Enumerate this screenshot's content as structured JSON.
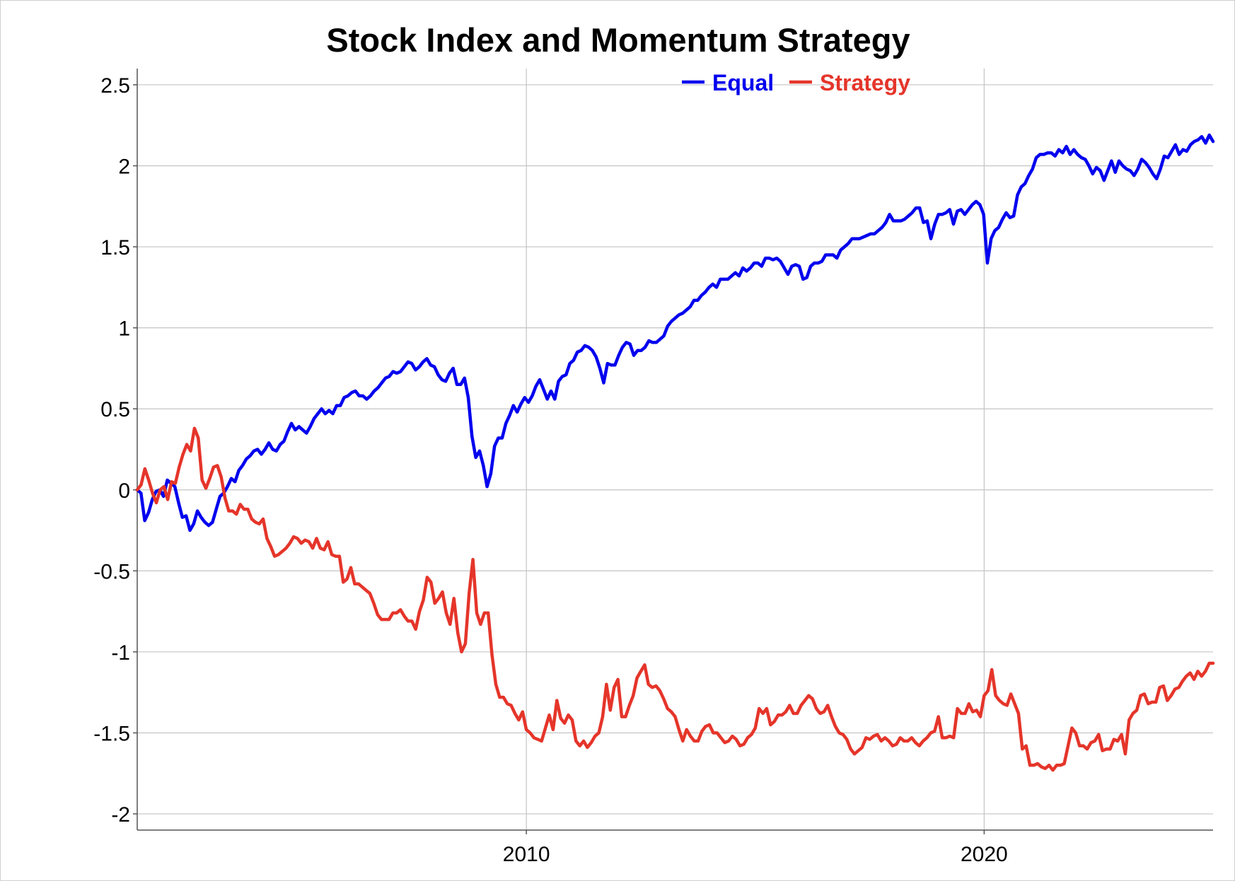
{
  "chart_data": {
    "type": "line",
    "title": "Stock Index and Momentum Strategy",
    "xlabel": "",
    "ylabel": "",
    "x_start_year": 2001.5,
    "x_end_year": 2025,
    "xlim": [
      2001.5,
      2025
    ],
    "ylim": [
      -2.1,
      2.6
    ],
    "yticks": [
      2.5,
      2,
      1.5,
      1,
      0.5,
      0,
      -0.5,
      -1,
      -1.5,
      -2
    ],
    "ytick_labels": [
      "2.5",
      "2",
      "1.5",
      "1",
      "0.5",
      "0",
      "-0.5",
      "-1",
      "-1.5",
      "-2"
    ],
    "xticks": [
      2010,
      2020
    ],
    "xtick_labels": [
      "2010",
      "2020"
    ],
    "grid": true,
    "legend_position": "top-right",
    "series": [
      {
        "name": "Equal",
        "color": "#0000ee",
        "values": [
          0,
          -0.02,
          -0.19,
          -0.14,
          -0.06,
          -0.01,
          0,
          -0.04,
          0.06,
          0.04,
          0.02,
          -0.08,
          -0.17,
          -0.16,
          -0.25,
          -0.21,
          -0.13,
          -0.17,
          -0.2,
          -0.22,
          -0.2,
          -0.12,
          -0.04,
          -0.02,
          0.02,
          0.07,
          0.05,
          0.12,
          0.15,
          0.19,
          0.21,
          0.24,
          0.25,
          0.22,
          0.25,
          0.29,
          0.25,
          0.24,
          0.28,
          0.3,
          0.36,
          0.41,
          0.37,
          0.39,
          0.37,
          0.35,
          0.39,
          0.44,
          0.47,
          0.5,
          0.47,
          0.49,
          0.47,
          0.52,
          0.52,
          0.57,
          0.58,
          0.6,
          0.61,
          0.58,
          0.58,
          0.56,
          0.58,
          0.61,
          0.63,
          0.66,
          0.69,
          0.7,
          0.73,
          0.72,
          0.73,
          0.76,
          0.79,
          0.78,
          0.74,
          0.76,
          0.79,
          0.81,
          0.77,
          0.76,
          0.71,
          0.68,
          0.67,
          0.72,
          0.75,
          0.65,
          0.65,
          0.69,
          0.57,
          0.33,
          0.2,
          0.24,
          0.15,
          0.02,
          0.1,
          0.27,
          0.32,
          0.32,
          0.41,
          0.46,
          0.52,
          0.48,
          0.53,
          0.57,
          0.54,
          0.58,
          0.64,
          0.68,
          0.62,
          0.56,
          0.61,
          0.56,
          0.67,
          0.7,
          0.71,
          0.78,
          0.8,
          0.85,
          0.86,
          0.89,
          0.88,
          0.86,
          0.82,
          0.75,
          0.66,
          0.78,
          0.77,
          0.77,
          0.83,
          0.88,
          0.91,
          0.9,
          0.83,
          0.86,
          0.86,
          0.88,
          0.92,
          0.91,
          0.91,
          0.93,
          0.95,
          1.01,
          1.04,
          1.06,
          1.08,
          1.09,
          1.11,
          1.13,
          1.17,
          1.17,
          1.2,
          1.22,
          1.25,
          1.27,
          1.25,
          1.3,
          1.3,
          1.3,
          1.32,
          1.34,
          1.32,
          1.37,
          1.35,
          1.37,
          1.4,
          1.4,
          1.38,
          1.43,
          1.43,
          1.42,
          1.43,
          1.41,
          1.37,
          1.33,
          1.38,
          1.39,
          1.38,
          1.3,
          1.31,
          1.38,
          1.4,
          1.4,
          1.41,
          1.45,
          1.45,
          1.45,
          1.43,
          1.48,
          1.5,
          1.52,
          1.55,
          1.55,
          1.55,
          1.56,
          1.57,
          1.58,
          1.58,
          1.6,
          1.62,
          1.65,
          1.7,
          1.66,
          1.66,
          1.66,
          1.67,
          1.69,
          1.71,
          1.74,
          1.74,
          1.65,
          1.66,
          1.55,
          1.64,
          1.7,
          1.7,
          1.71,
          1.73,
          1.64,
          1.72,
          1.73,
          1.7,
          1.73,
          1.76,
          1.78,
          1.76,
          1.7,
          1.4,
          1.55,
          1.6,
          1.62,
          1.67,
          1.71,
          1.68,
          1.69,
          1.82,
          1.87,
          1.89,
          1.94,
          1.98,
          2.05,
          2.07,
          2.07,
          2.08,
          2.08,
          2.06,
          2.1,
          2.08,
          2.12,
          2.07,
          2.1,
          2.07,
          2.05,
          2.04,
          2.0,
          1.95,
          1.99,
          1.97,
          1.91,
          1.97,
          2.03,
          1.96,
          2.03,
          2.0,
          1.98,
          1.97,
          1.94,
          1.98,
          2.04,
          2.02,
          1.99,
          1.95,
          1.92,
          1.98,
          2.06,
          2.05,
          2.09,
          2.13,
          2.07,
          2.1,
          2.09,
          2.13,
          2.15,
          2.16,
          2.18,
          2.14,
          2.19,
          2.15
        ]
      },
      {
        "name": "Strategy",
        "color": "#e5352a",
        "values": [
          0,
          0.03,
          0.13,
          0.06,
          -0.02,
          -0.08,
          0,
          0.02,
          -0.06,
          0.05,
          0.04,
          0.14,
          0.22,
          0.28,
          0.24,
          0.38,
          0.32,
          0.06,
          0.01,
          0.07,
          0.14,
          0.15,
          0.08,
          -0.05,
          -0.13,
          -0.13,
          -0.15,
          -0.09,
          -0.12,
          -0.12,
          -0.18,
          -0.2,
          -0.21,
          -0.18,
          -0.3,
          -0.35,
          -0.41,
          -0.4,
          -0.38,
          -0.36,
          -0.33,
          -0.29,
          -0.3,
          -0.33,
          -0.31,
          -0.32,
          -0.36,
          -0.3,
          -0.36,
          -0.37,
          -0.32,
          -0.4,
          -0.41,
          -0.41,
          -0.57,
          -0.55,
          -0.48,
          -0.58,
          -0.58,
          -0.6,
          -0.62,
          -0.64,
          -0.7,
          -0.77,
          -0.8,
          -0.8,
          -0.8,
          -0.76,
          -0.76,
          -0.74,
          -0.78,
          -0.81,
          -0.81,
          -0.86,
          -0.75,
          -0.68,
          -0.54,
          -0.57,
          -0.7,
          -0.67,
          -0.63,
          -0.76,
          -0.83,
          -0.67,
          -0.88,
          -1.0,
          -0.95,
          -0.64,
          -0.43,
          -0.76,
          -0.83,
          -0.76,
          -0.76,
          -1.02,
          -1.2,
          -1.28,
          -1.28,
          -1.32,
          -1.33,
          -1.38,
          -1.42,
          -1.37,
          -1.48,
          -1.5,
          -1.53,
          -1.54,
          -1.55,
          -1.47,
          -1.39,
          -1.48,
          -1.3,
          -1.41,
          -1.44,
          -1.39,
          -1.42,
          -1.55,
          -1.58,
          -1.55,
          -1.59,
          -1.56,
          -1.52,
          -1.5,
          -1.4,
          -1.2,
          -1.36,
          -1.22,
          -1.17,
          -1.4,
          -1.4,
          -1.33,
          -1.27,
          -1.16,
          -1.12,
          -1.08,
          -1.2,
          -1.22,
          -1.21,
          -1.24,
          -1.29,
          -1.35,
          -1.37,
          -1.4,
          -1.48,
          -1.55,
          -1.48,
          -1.52,
          -1.55,
          -1.55,
          -1.49,
          -1.46,
          -1.45,
          -1.5,
          -1.5,
          -1.53,
          -1.56,
          -1.55,
          -1.52,
          -1.54,
          -1.58,
          -1.57,
          -1.53,
          -1.51,
          -1.47,
          -1.35,
          -1.38,
          -1.35,
          -1.45,
          -1.43,
          -1.39,
          -1.39,
          -1.37,
          -1.33,
          -1.38,
          -1.38,
          -1.33,
          -1.3,
          -1.27,
          -1.29,
          -1.35,
          -1.38,
          -1.37,
          -1.33,
          -1.4,
          -1.46,
          -1.5,
          -1.51,
          -1.54,
          -1.6,
          -1.63,
          -1.61,
          -1.59,
          -1.53,
          -1.54,
          -1.52,
          -1.51,
          -1.55,
          -1.53,
          -1.55,
          -1.58,
          -1.57,
          -1.53,
          -1.55,
          -1.55,
          -1.53,
          -1.56,
          -1.58,
          -1.55,
          -1.53,
          -1.5,
          -1.49,
          -1.4,
          -1.53,
          -1.53,
          -1.52,
          -1.53,
          -1.35,
          -1.38,
          -1.38,
          -1.32,
          -1.37,
          -1.36,
          -1.4,
          -1.27,
          -1.24,
          -1.11,
          -1.27,
          -1.3,
          -1.32,
          -1.33,
          -1.26,
          -1.32,
          -1.38,
          -1.6,
          -1.58,
          -1.7,
          -1.7,
          -1.69,
          -1.71,
          -1.72,
          -1.7,
          -1.73,
          -1.7,
          -1.7,
          -1.69,
          -1.58,
          -1.47,
          -1.5,
          -1.58,
          -1.58,
          -1.6,
          -1.56,
          -1.55,
          -1.51,
          -1.61,
          -1.6,
          -1.6,
          -1.54,
          -1.55,
          -1.51,
          -1.63,
          -1.42,
          -1.38,
          -1.36,
          -1.27,
          -1.26,
          -1.32,
          -1.31,
          -1.31,
          -1.22,
          -1.21,
          -1.3,
          -1.27,
          -1.23,
          -1.22,
          -1.18,
          -1.15,
          -1.13,
          -1.17,
          -1.12,
          -1.15,
          -1.12,
          -1.07,
          -1.07
        ]
      }
    ]
  }
}
